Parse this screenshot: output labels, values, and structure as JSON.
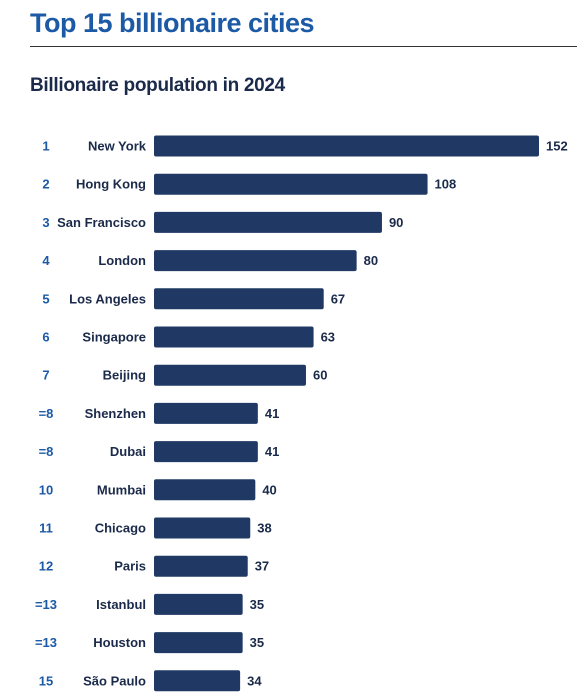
{
  "header": {
    "title": "Top 15 billionaire cities"
  },
  "chart_data": {
    "type": "bar",
    "orientation": "horizontal",
    "title": "Billionaire population in 2024",
    "bar_color": "#1f3864",
    "rank_color": "#1c5aa6",
    "xlim": [
      0,
      152
    ],
    "grid": false,
    "legend": "none",
    "ranks": [
      "1",
      "2",
      "3",
      "4",
      "5",
      "6",
      "7",
      "=8",
      "=8",
      "10",
      "11",
      "12",
      "=13",
      "=13",
      "15"
    ],
    "categories": [
      "New York",
      "Hong Kong",
      "San Francisco",
      "London",
      "Los Angeles",
      "Singapore",
      "Beijing",
      "Shenzhen",
      "Dubai",
      "Mumbai",
      "Chicago",
      "Paris",
      "Istanbul",
      "Houston",
      "São Paulo"
    ],
    "values": [
      152,
      108,
      90,
      80,
      67,
      63,
      60,
      41,
      41,
      40,
      38,
      37,
      35,
      35,
      34
    ]
  }
}
